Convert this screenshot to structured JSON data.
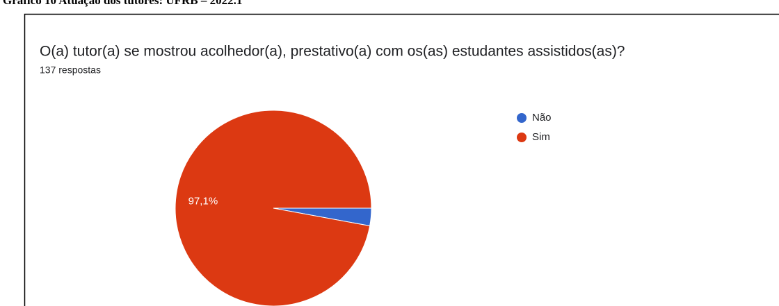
{
  "caption": "Gráfico 10 Atuação dos tutores: UFRB – 2022.1",
  "chart_data": {
    "type": "pie",
    "title": "O(a) tutor(a) se mostrou acolhedor(a), prestativo(a) com os(as) estudantes assistidos(as)?",
    "subtitle": "137 respostas",
    "categories": [
      "Não",
      "Sim"
    ],
    "values": [
      2.9,
      97.1
    ],
    "value_labels": [
      null,
      "97,1%"
    ],
    "colors": [
      "#3366cc",
      "#dc3912"
    ],
    "legend": "right"
  }
}
